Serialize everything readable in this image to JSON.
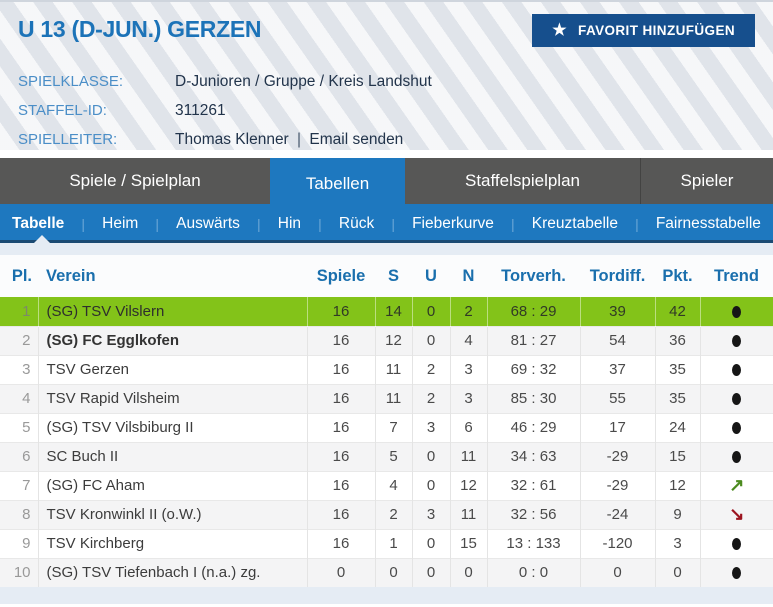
{
  "colors": {
    "accent_blue": "#1e78bf",
    "button_dark_blue": "#164f8d",
    "tabbar_gray": "#575756",
    "promotion_green": "#83c319",
    "trend_up_green": "#4c8b1f",
    "trend_down_red": "#9c1420"
  },
  "header": {
    "title": "U 13 (D-JUN.) GERZEN",
    "favorite_button_label": "FAVORIT HINZUFÜGEN",
    "star_icon": "★",
    "meta": [
      {
        "label": "SPIELKLASSE:",
        "value": "D-Junioren / Gruppe / Kreis Landshut"
      },
      {
        "label": "STAFFEL-ID:",
        "value": "311261"
      },
      {
        "label": "SPIELLEITER:",
        "value": "Thomas Klenner",
        "separator": "|",
        "link": "Email senden"
      }
    ]
  },
  "nav": {
    "tabs": [
      {
        "label": "Spiele / Spielplan",
        "active": false
      },
      {
        "label": "Tabellen",
        "active": true
      },
      {
        "label": "Staffelspielplan",
        "active": false
      },
      {
        "label": "Spieler",
        "active": false
      }
    ],
    "subtabs": [
      {
        "label": "Tabelle",
        "active": true
      },
      {
        "label": "Heim",
        "active": false
      },
      {
        "label": "Auswärts",
        "active": false
      },
      {
        "label": "Hin",
        "active": false
      },
      {
        "label": "Rück",
        "active": false
      },
      {
        "label": "Fieberkurve",
        "active": false
      },
      {
        "label": "Kreuztabelle",
        "active": false
      },
      {
        "label": "Fairnesstabelle",
        "active": false
      }
    ],
    "subtab_separator": "|"
  },
  "trend_icons": {
    "up": "↗",
    "down": "↘"
  },
  "table": {
    "columns": [
      "Pl.",
      "Verein",
      "Spiele",
      "S",
      "U",
      "N",
      "Torverh.",
      "Tordiff.",
      "Pkt.",
      "Trend"
    ],
    "rows": [
      {
        "pl": "1",
        "verein": "(SG) TSV Vilslern",
        "spiele": "16",
        "s": "14",
        "u": "0",
        "n": "2",
        "torverh": "68 : 29",
        "tordiff": "39",
        "pkt": "42",
        "trend": "dot",
        "highlight": true,
        "bold": false
      },
      {
        "pl": "2",
        "verein": "(SG) FC Egglkofen",
        "spiele": "16",
        "s": "12",
        "u": "0",
        "n": "4",
        "torverh": "81 : 27",
        "tordiff": "54",
        "pkt": "36",
        "trend": "dot",
        "highlight": false,
        "bold": true
      },
      {
        "pl": "3",
        "verein": "TSV Gerzen",
        "spiele": "16",
        "s": "11",
        "u": "2",
        "n": "3",
        "torverh": "69 : 32",
        "tordiff": "37",
        "pkt": "35",
        "trend": "dot",
        "highlight": false,
        "bold": false
      },
      {
        "pl": "4",
        "verein": "TSV Rapid Vilsheim",
        "spiele": "16",
        "s": "11",
        "u": "2",
        "n": "3",
        "torverh": "85 : 30",
        "tordiff": "55",
        "pkt": "35",
        "trend": "dot",
        "highlight": false,
        "bold": false
      },
      {
        "pl": "5",
        "verein": "(SG) TSV Vilsbiburg II",
        "spiele": "16",
        "s": "7",
        "u": "3",
        "n": "6",
        "torverh": "46 : 29",
        "tordiff": "17",
        "pkt": "24",
        "trend": "dot",
        "highlight": false,
        "bold": false
      },
      {
        "pl": "6",
        "verein": "SC Buch II",
        "spiele": "16",
        "s": "5",
        "u": "0",
        "n": "11",
        "torverh": "34 : 63",
        "tordiff": "-29",
        "pkt": "15",
        "trend": "dot",
        "highlight": false,
        "bold": false
      },
      {
        "pl": "7",
        "verein": "(SG) FC Aham",
        "spiele": "16",
        "s": "4",
        "u": "0",
        "n": "12",
        "torverh": "32 : 61",
        "tordiff": "-29",
        "pkt": "12",
        "trend": "up",
        "highlight": false,
        "bold": false
      },
      {
        "pl": "8",
        "verein": "TSV Kronwinkl II (o.W.)",
        "spiele": "16",
        "s": "2",
        "u": "3",
        "n": "11",
        "torverh": "32 : 56",
        "tordiff": "-24",
        "pkt": "9",
        "trend": "down",
        "highlight": false,
        "bold": false
      },
      {
        "pl": "9",
        "verein": "TSV Kirchberg",
        "spiele": "16",
        "s": "1",
        "u": "0",
        "n": "15",
        "torverh": "13 : 133",
        "tordiff": "-120",
        "pkt": "3",
        "trend": "dot",
        "highlight": false,
        "bold": false
      },
      {
        "pl": "10",
        "verein": "(SG) TSV Tiefenbach I (n.a.) zg.",
        "spiele": "0",
        "s": "0",
        "u": "0",
        "n": "0",
        "torverh": "0 : 0",
        "tordiff": "0",
        "pkt": "0",
        "trend": "dot",
        "highlight": false,
        "bold": false
      }
    ]
  }
}
